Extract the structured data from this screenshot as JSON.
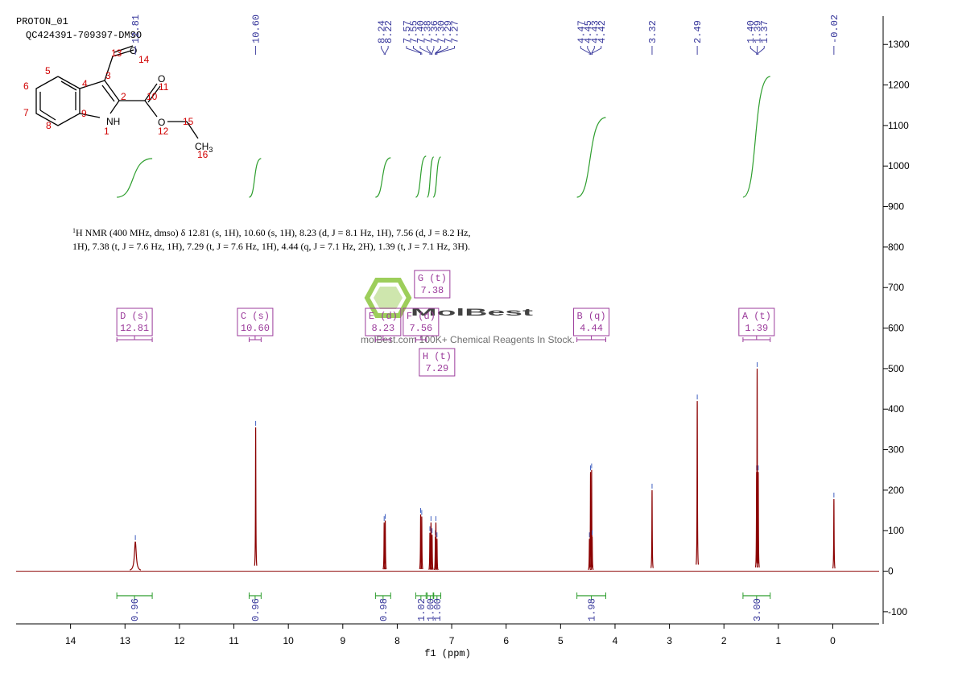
{
  "header": {
    "experiment": "PROTON_01",
    "sample": "QC424391-709397-DMSO"
  },
  "structure": {
    "atoms": [
      "O",
      "O",
      "NH",
      "O",
      "CH"
    ],
    "subscript": "3",
    "numbers": [
      "13",
      "14",
      "3",
      "5",
      "4",
      "6",
      "2",
      "10",
      "11",
      "7",
      "9",
      "8",
      "1",
      "12",
      "15",
      "16"
    ]
  },
  "description": [
    "1",
    "H NMR (400 MHz, dmso) δ 12.81 (s, 1H), 10.60 (s, 1H), 8.23 (d, J = 8.1 Hz, 1H), 7.56 (d, J = 8.2 Hz,",
    "1H), 7.38 (t, J = 7.6 Hz, 1H), 7.29 (t, J = 7.6 Hz, 1H), 4.44 (q, J = 7.1 Hz, 2H), 1.39 (t, J = 7.1 Hz, 3H)."
  ],
  "watermark": {
    "brand": "MolBest",
    "tagline": "molBest.com 100K+ Chemical Reagents In Stock."
  },
  "chart_data": {
    "type": "spectrum",
    "x_label": "f1 (ppm)",
    "xlim": [
      15,
      -0.85
    ],
    "xticks": [
      0,
      1,
      2,
      3,
      4,
      5,
      6,
      7,
      8,
      9,
      10,
      11,
      12,
      13,
      14
    ],
    "ylim": [
      -130,
      1370
    ],
    "yticks": [
      -100,
      0,
      100,
      200,
      300,
      400,
      500,
      600,
      700,
      800,
      900,
      1000,
      1100,
      1200,
      1300
    ],
    "color": "#8b0000",
    "peaks": {
      "x": [
        12.81,
        10.6,
        8.24,
        8.22,
        7.57,
        7.55,
        7.4,
        7.38,
        7.36,
        7.3,
        7.29,
        7.27,
        4.47,
        4.45,
        4.43,
        4.42,
        3.32,
        2.49,
        1.4,
        1.39,
        1.37,
        -0.02
      ],
      "values": [
        73,
        355,
        120,
        125,
        140,
        135,
        95,
        120,
        90,
        85,
        120,
        80,
        80,
        245,
        250,
        85,
        200,
        420,
        245,
        500,
        245,
        178
      ],
      "labels": [
        "12.81",
        "10.60",
        "8.24",
        "8.22",
        "7.57",
        "7.55",
        "7.40",
        "7.38",
        "7.36",
        "7.30",
        "7.29",
        "7.27",
        "4.47",
        "4.45",
        "4.43",
        "4.42",
        "3.32",
        "2.49",
        "1.40",
        "1.39",
        "1.37",
        "-0.02"
      ]
    },
    "integrals": {
      "ranges": [
        [
          13.15,
          12.5
        ],
        [
          10.72,
          10.5
        ],
        [
          8.4,
          8.12
        ],
        [
          7.66,
          7.47
        ],
        [
          7.45,
          7.33
        ],
        [
          7.34,
          7.2
        ],
        [
          4.7,
          4.17
        ],
        [
          1.65,
          1.15
        ]
      ],
      "values": [
        0.96,
        0.96,
        0.98,
        1.02,
        1,
        1,
        1.98,
        3
      ],
      "value_labels": [
        "0.96",
        "0.96",
        "0.98",
        "1.02",
        "1.00",
        "1.00",
        "1.98",
        "3.00"
      ]
    },
    "multiplets": {
      "names": [
        "D (s)",
        "C (s)",
        "E (d)",
        "F (d)",
        "G (t)",
        "H (t)",
        "B (q)",
        "A (t)"
      ],
      "shifts": [
        "12.81",
        "10.60",
        "8.23",
        "7.56",
        "7.38",
        "7.29",
        "4.44",
        "1.39"
      ]
    },
    "integral_color": "#2e9e2e",
    "label_color": "#333399",
    "box_color": "#9b3b9b"
  }
}
